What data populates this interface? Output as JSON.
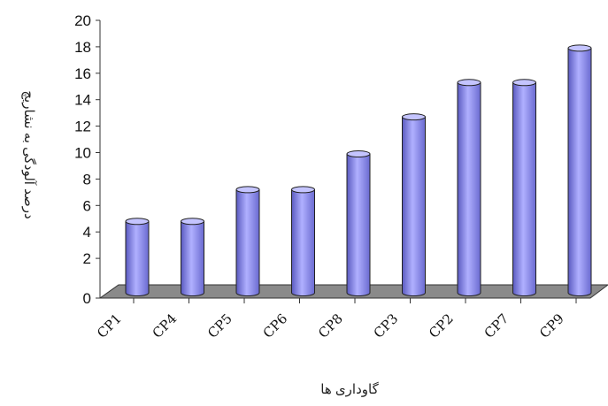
{
  "chart_data": {
    "type": "bar",
    "categories": [
      "CP1",
      "CP4",
      "CP5",
      "CP6",
      "CP8",
      "CP3",
      "CP2",
      "CP7",
      "CP9"
    ],
    "values": [
      5.4,
      5.4,
      7.8,
      7.8,
      10.5,
      13.3,
      15.9,
      15.9,
      18.5
    ],
    "xlabel": "گاوداری ها",
    "ylabel": "درصد آلودگی به نشاریچ",
    "ylim": [
      0,
      20
    ],
    "yticks": [
      0,
      2,
      4,
      6,
      8,
      10,
      12,
      14,
      16,
      18,
      20
    ],
    "grid": false,
    "style": "3d-cylinder",
    "colors": {
      "bar": "#8c8cf0",
      "bar_dark": "#4a4aa8",
      "bar_light": "#c4c4ff",
      "floor": "#8a8a8a"
    }
  }
}
